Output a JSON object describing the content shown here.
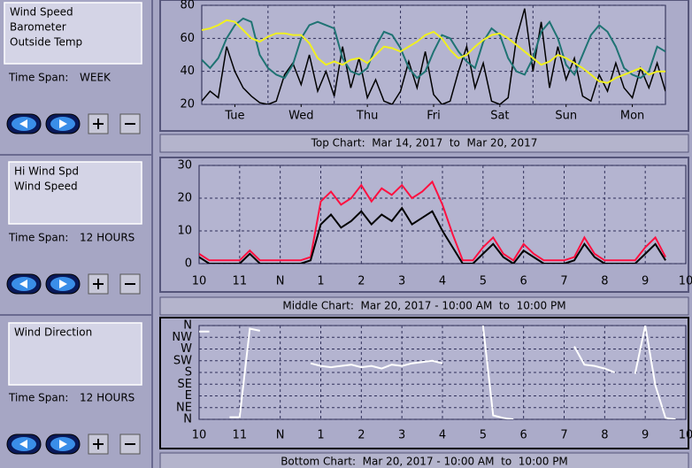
{
  "panels": [
    {
      "time_span_label": "Time Span:",
      "time_span": "WEEK",
      "caption": "Top Chart:  Mar 14, 2017  to  Mar 20, 2017",
      "chart": {
        "type": "line",
        "x": [
          0,
          0.125,
          0.25,
          0.375,
          0.5,
          0.625,
          0.75,
          0.875,
          1,
          1.125,
          1.25,
          1.375,
          1.5,
          1.625,
          1.75,
          1.875,
          2,
          2.125,
          2.25,
          2.375,
          2.5,
          2.625,
          2.75,
          2.875,
          3,
          3.125,
          3.25,
          3.375,
          3.5,
          3.625,
          3.75,
          3.875,
          4,
          4.125,
          4.25,
          4.375,
          4.5,
          4.625,
          4.75,
          4.875,
          5,
          5.125,
          5.25,
          5.375,
          5.5,
          5.625,
          5.75,
          5.875,
          6,
          6.125,
          6.25,
          6.375,
          6.5,
          6.625,
          6.75,
          6.875,
          7
        ],
        "series": [
          {
            "name": "Wind Speed",
            "color": "#000000",
            "values": [
              22,
              28,
              24,
              55,
              40,
              30,
              25,
              21,
              20,
              22,
              38,
              45,
              32,
              50,
              28,
              40,
              25,
              55,
              30,
              48,
              24,
              35,
              22,
              20,
              28,
              46,
              30,
              52,
              26,
              20,
              22,
              40,
              55,
              30,
              45,
              22,
              20,
              24,
              60,
              78,
              40,
              70,
              30,
              55,
              35,
              48,
              25,
              22,
              38,
              28,
              45,
              30,
              24,
              42,
              30,
              45,
              28
            ]
          },
          {
            "name": "Barometer",
            "color": "#1f7373",
            "values": [
              47,
              42,
              48,
              60,
              68,
              72,
              70,
              50,
              42,
              38,
              36,
              44,
              60,
              68,
              70,
              68,
              66,
              48,
              40,
              38,
              42,
              55,
              64,
              62,
              54,
              42,
              36,
              40,
              52,
              62,
              60,
              52,
              46,
              42,
              58,
              66,
              62,
              48,
              40,
              38,
              48,
              64,
              70,
              60,
              44,
              38,
              50,
              62,
              68,
              64,
              55,
              42,
              38,
              36,
              40,
              55,
              52
            ]
          },
          {
            "name": "Outside Temp",
            "color": "#f0f020",
            "values": [
              65,
              66,
              68,
              71,
              70,
              65,
              60,
              58,
              61,
              63,
              63,
              62,
              62,
              57,
              48,
              44,
              46,
              44,
              47,
              48,
              45,
              50,
              55,
              54,
              52,
              55,
              58,
              62,
              64,
              60,
              53,
              48,
              50,
              55,
              59,
              62,
              63,
              60,
              56,
              52,
              48,
              44,
              46,
              50,
              48,
              45,
              42,
              38,
              34,
              33,
              36,
              38,
              40,
              42,
              38,
              40,
              40
            ]
          }
        ],
        "xlim": [
          0,
          7
        ],
        "xticks": [
          {
            "value": 0.5,
            "label": "Tue"
          },
          {
            "value": 1.5,
            "label": "Wed"
          },
          {
            "value": 2.5,
            "label": "Thu"
          },
          {
            "value": 3.5,
            "label": "Fri"
          },
          {
            "value": 4.5,
            "label": "Sat"
          },
          {
            "value": 5.5,
            "label": "Sun"
          },
          {
            "value": 6.5,
            "label": "Mon"
          }
        ],
        "ylim": [
          20,
          80
        ],
        "yticks": [
          20,
          40,
          60,
          80
        ],
        "grid": true
      }
    },
    {
      "time_span_label": "Time Span:",
      "time_span": "12 HOURS",
      "caption": "Middle Chart:  Mar 20, 2017 - 10:00 AM  to  10:00 PM",
      "chart": {
        "type": "line",
        "x": [
          10,
          10.25,
          10.5,
          10.75,
          11,
          11.25,
          11.5,
          11.75,
          12,
          12.25,
          12.5,
          12.75,
          13,
          13.25,
          13.5,
          13.75,
          14,
          14.25,
          14.5,
          14.75,
          15,
          15.25,
          15.5,
          15.75,
          16,
          16.25,
          16.5,
          16.75,
          17,
          17.25,
          17.5,
          17.75,
          18,
          18.25,
          18.5,
          18.75,
          19,
          19.25,
          19.5,
          19.75,
          20,
          20.25,
          20.5,
          20.75,
          21,
          21.25,
          21.5,
          21.75,
          22
        ],
        "series": [
          {
            "name": "Hi Wind Spd",
            "color": "#ff1040",
            "values": [
              3,
              1,
              1,
              1,
              1,
              4,
              1,
              1,
              1,
              1,
              1,
              2,
              19,
              22,
              18,
              20,
              24,
              19,
              23,
              21,
              24,
              20,
              22,
              25,
              18,
              9,
              1,
              1,
              5,
              8,
              3,
              1,
              6,
              3,
              1,
              1,
              1,
              2,
              8,
              3,
              1,
              1,
              1,
              1,
              5,
              8,
              2,
              null,
              null
            ]
          },
          {
            "name": "Wind Speed",
            "color": "#000000",
            "values": [
              2,
              0,
              0,
              0,
              0,
              3,
              0,
              0,
              0,
              0,
              0,
              1,
              12,
              15,
              11,
              13,
              16,
              12,
              15,
              13,
              17,
              12,
              14,
              16,
              10,
              5,
              0,
              0,
              3,
              6,
              2,
              0,
              4,
              2,
              0,
              0,
              0,
              1,
              6,
              2,
              0,
              0,
              0,
              0,
              3,
              6,
              1,
              null,
              null
            ]
          }
        ],
        "xlim": [
          10,
          22
        ],
        "xticks": [
          10,
          11,
          {
            "value": 12,
            "label": "N"
          },
          {
            "value": 13,
            "label": "1"
          },
          {
            "value": 14,
            "label": "2"
          },
          {
            "value": 15,
            "label": "3"
          },
          {
            "value": 16,
            "label": "4"
          },
          {
            "value": 17,
            "label": "5"
          },
          {
            "value": 18,
            "label": "6"
          },
          {
            "value": 19,
            "label": "7"
          },
          {
            "value": 20,
            "label": "8"
          },
          {
            "value": 21,
            "label": "9"
          },
          {
            "value": 22,
            "label": "10"
          }
        ],
        "ylim": [
          0,
          30
        ],
        "yticks": [
          0,
          10,
          20,
          30
        ],
        "grid": true
      }
    },
    {
      "time_span_label": "Time Span:",
      "time_span": "12 HOURS",
      "caption": "Bottom Chart:  Mar 20, 2017 - 10:00 AM  to  10:00 PM",
      "chart": {
        "type": "line",
        "x": [
          10,
          10.25,
          10.5,
          10.75,
          11,
          11.25,
          11.5,
          11.75,
          12,
          12.25,
          12.5,
          12.75,
          13,
          13.25,
          13.5,
          13.75,
          14,
          14.25,
          14.5,
          14.75,
          15,
          15.25,
          15.5,
          15.75,
          16,
          16.25,
          16.5,
          16.75,
          17,
          17.25,
          17.5,
          17.75,
          18,
          18.25,
          18.5,
          18.75,
          19,
          19.25,
          19.5,
          19.75,
          20,
          20.25,
          20.5,
          20.75,
          21,
          21.25,
          21.5,
          21.75,
          22
        ],
        "series": [
          {
            "name": "Wind Direction",
            "color": "#ffffff",
            "values": [
              337,
              337,
              null,
              8,
              8,
              348,
              340,
              null,
              350,
              null,
              null,
              215,
              205,
              200,
              205,
              210,
              200,
              205,
              195,
              210,
              205,
              215,
              220,
              225,
              215,
              null,
              230,
              null,
              360,
              15,
              5,
              0,
              null,
              null,
              null,
              null,
              null,
              280,
              210,
              205,
              195,
              180,
              null,
              175,
              360,
              130,
              5,
              0,
              null
            ]
          }
        ],
        "xlim": [
          10,
          22
        ],
        "xticks": [
          10,
          11,
          {
            "value": 12,
            "label": "N"
          },
          {
            "value": 13,
            "label": "1"
          },
          {
            "value": 14,
            "label": "2"
          },
          {
            "value": 15,
            "label": "3"
          },
          {
            "value": 16,
            "label": "4"
          },
          {
            "value": 17,
            "label": "5"
          },
          {
            "value": 18,
            "label": "6"
          },
          {
            "value": 19,
            "label": "7"
          },
          {
            "value": 20,
            "label": "8"
          },
          {
            "value": 21,
            "label": "9"
          },
          {
            "value": 22,
            "label": "10"
          }
        ],
        "ylim": [
          0,
          360
        ],
        "yticks": [
          {
            "value": 0,
            "label": "N"
          },
          {
            "value": 45,
            "label": "NE"
          },
          {
            "value": 90,
            "label": "E"
          },
          {
            "value": 135,
            "label": "SE"
          },
          {
            "value": 180,
            "label": "S"
          },
          {
            "value": 225,
            "label": "SW"
          },
          {
            "value": 270,
            "label": "W"
          },
          {
            "value": 315,
            "label": "NW"
          },
          {
            "value": 360,
            "label": "N"
          }
        ],
        "grid": true
      }
    }
  ]
}
